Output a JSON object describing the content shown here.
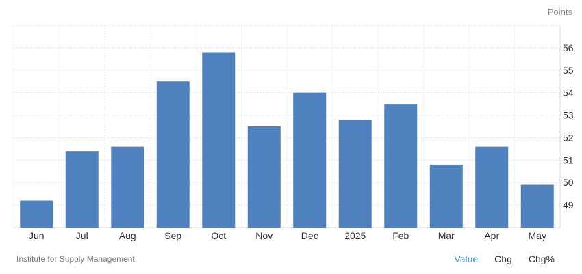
{
  "chart_data": {
    "type": "bar",
    "categories": [
      "Jun",
      "Jul",
      "Aug",
      "Sep",
      "Oct",
      "Nov",
      "Dec",
      "2025",
      "Feb",
      "Mar",
      "Apr",
      "May"
    ],
    "values": [
      49.2,
      51.4,
      51.6,
      54.5,
      55.8,
      52.5,
      54.0,
      52.8,
      53.5,
      50.8,
      51.6,
      49.9
    ],
    "ylabel": "Points",
    "ylim": [
      48,
      57
    ],
    "yticks": [
      49,
      50,
      51,
      52,
      53,
      54,
      55,
      56
    ],
    "grid": true,
    "color": "#4e81bd"
  },
  "source": "Institute for Supply Management",
  "tabs": [
    {
      "label": "Value",
      "active": true
    },
    {
      "label": "Chg",
      "active": false
    },
    {
      "label": "Chg%",
      "active": false
    }
  ]
}
